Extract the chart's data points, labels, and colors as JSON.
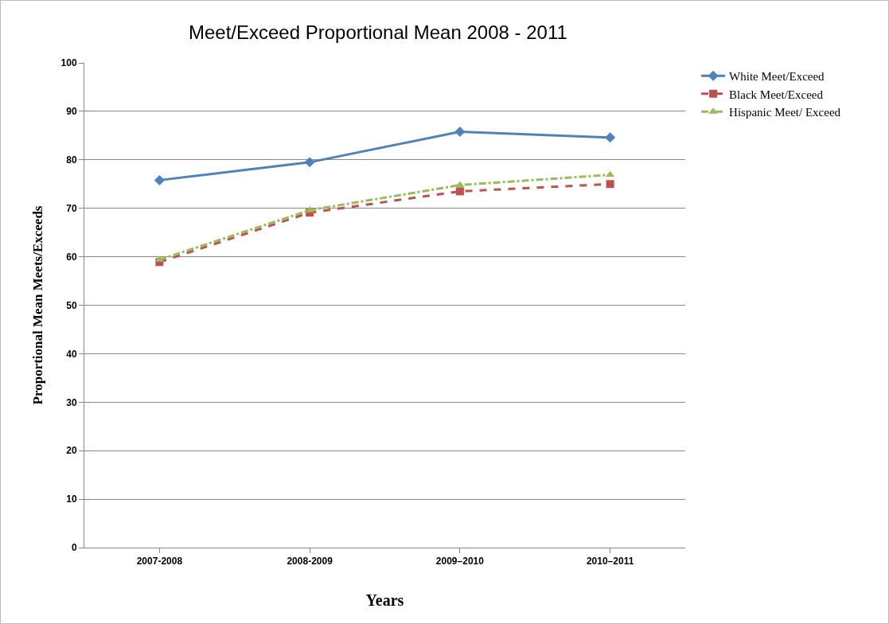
{
  "chart_data": {
    "type": "line",
    "title": "Meet/Exceed Proportional Mean 2008 - 2011",
    "xlabel": "Years",
    "ylabel": "Proportional Mean Meets/Exceeds",
    "categories": [
      "2007-2008",
      "2008-2009",
      "2009–2010",
      "2010–2011"
    ],
    "series": [
      {
        "name": "White Meet/Exceed",
        "color": "#4f81bd",
        "values": [
          75.8,
          79.5,
          85.8,
          84.6
        ],
        "marker": "diamond",
        "line_style": "solid"
      },
      {
        "name": "Black Meet/Exceed",
        "color": "#c0504d",
        "values": [
          58.9,
          69.1,
          73.5,
          75.0
        ],
        "marker": "square",
        "line_style": "dashed"
      },
      {
        "name": "Hispanic Meet/ Exceed",
        "color": "#9bbb59",
        "values": [
          59.4,
          69.6,
          74.8,
          76.9
        ],
        "marker": "triangle",
        "line_style": "dashdot"
      }
    ],
    "ylim": [
      0,
      100
    ],
    "yticks": [
      0,
      10,
      20,
      30,
      40,
      50,
      60,
      70,
      80,
      90,
      100
    ],
    "grid": "y",
    "legend": "top right"
  }
}
